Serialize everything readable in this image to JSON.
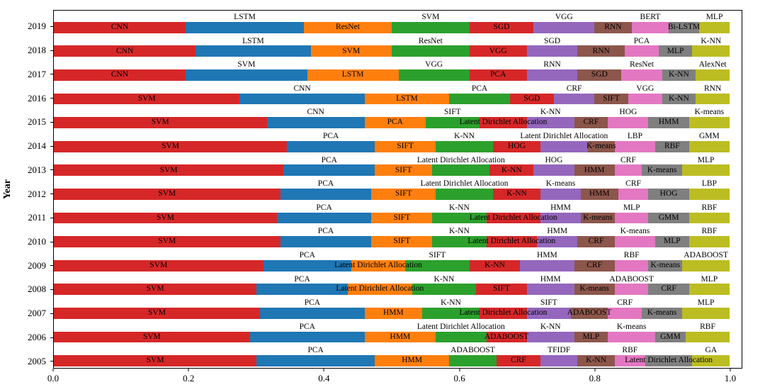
{
  "chart_data": {
    "type": "bar",
    "orientation": "horizontal",
    "stacked": true,
    "normalized": true,
    "title": "",
    "xlabel": "",
    "ylabel": "Year",
    "xlim": [
      0,
      1.02
    ],
    "xticks": [
      "0.0",
      "0.2",
      "0.4",
      "0.6",
      "0.8",
      "1.0"
    ],
    "grid": false,
    "legend": "none",
    "label_layout": "segments at even index are labeled inside the bar; segments at odd index are labeled above the bar",
    "colors": [
      "#d62728",
      "#1f77b4",
      "#ff7f0e",
      "#2ca02c",
      "#d62728",
      "#9467bd",
      "#8c564b",
      "#e377c2",
      "#7f7f7f",
      "#bcbd22"
    ],
    "rows": [
      {
        "year": "2019",
        "segments": [
          {
            "label": "CNN",
            "value": 0.195
          },
          {
            "label": "LSTM",
            "value": 0.175
          },
          {
            "label": "ResNet",
            "value": 0.13
          },
          {
            "label": "SVM",
            "value": 0.115
          },
          {
            "label": "SGD",
            "value": 0.095
          },
          {
            "label": "VGG",
            "value": 0.09
          },
          {
            "label": "RNN",
            "value": 0.055
          },
          {
            "label": "BERT",
            "value": 0.055
          },
          {
            "label": "Bi-LSTM",
            "value": 0.045
          },
          {
            "label": "MLP",
            "value": 0.045
          }
        ]
      },
      {
        "year": "2018",
        "segments": [
          {
            "label": "CNN",
            "value": 0.21
          },
          {
            "label": "LSTM",
            "value": 0.17
          },
          {
            "label": "SVM",
            "value": 0.12
          },
          {
            "label": "ResNet",
            "value": 0.115
          },
          {
            "label": "VGG",
            "value": 0.085
          },
          {
            "label": "SGD",
            "value": 0.075
          },
          {
            "label": "RNN",
            "value": 0.07
          },
          {
            "label": "PCA",
            "value": 0.05
          },
          {
            "label": "MLP",
            "value": 0.05
          },
          {
            "label": "K-NN",
            "value": 0.055
          }
        ]
      },
      {
        "year": "2017",
        "segments": [
          {
            "label": "CNN",
            "value": 0.195
          },
          {
            "label": "SVM",
            "value": 0.18
          },
          {
            "label": "LSTM",
            "value": 0.135
          },
          {
            "label": "VGG",
            "value": 0.105
          },
          {
            "label": "PCA",
            "value": 0.085
          },
          {
            "label": "RNN",
            "value": 0.075
          },
          {
            "label": "SGD",
            "value": 0.065
          },
          {
            "label": "ResNet",
            "value": 0.06
          },
          {
            "label": "K-NN",
            "value": 0.05
          },
          {
            "label": "AlexNet",
            "value": 0.05
          }
        ]
      },
      {
        "year": "2016",
        "segments": [
          {
            "label": "SVM",
            "value": 0.275
          },
          {
            "label": "CNN",
            "value": 0.185
          },
          {
            "label": "LSTM",
            "value": 0.125
          },
          {
            "label": "PCA",
            "value": 0.09
          },
          {
            "label": "SGD",
            "value": 0.065
          },
          {
            "label": "CRF",
            "value": 0.06
          },
          {
            "label": "SIFT",
            "value": 0.05
          },
          {
            "label": "VGG",
            "value": 0.05
          },
          {
            "label": "K-NN",
            "value": 0.05
          },
          {
            "label": "RNN",
            "value": 0.05
          }
        ]
      },
      {
        "year": "2015",
        "segments": [
          {
            "label": "SVM",
            "value": 0.315
          },
          {
            "label": "CNN",
            "value": 0.145
          },
          {
            "label": "PCA",
            "value": 0.09
          },
          {
            "label": "SIFT",
            "value": 0.08
          },
          {
            "label": "Latent Dirichlet Allocation",
            "value": 0.07
          },
          {
            "label": "K-NN",
            "value": 0.07
          },
          {
            "label": "CRF",
            "value": 0.05
          },
          {
            "label": "HOG",
            "value": 0.06
          },
          {
            "label": "HMM",
            "value": 0.06
          },
          {
            "label": "K-means",
            "value": 0.06
          }
        ]
      },
      {
        "year": "2014",
        "segments": [
          {
            "label": "SVM",
            "value": 0.345
          },
          {
            "label": "PCA",
            "value": 0.13
          },
          {
            "label": "SIFT",
            "value": 0.09
          },
          {
            "label": "K-NN",
            "value": 0.085
          },
          {
            "label": "HOG",
            "value": 0.07
          },
          {
            "label": "Latent Dirichlet Allocation",
            "value": 0.07
          },
          {
            "label": "K-means",
            "value": 0.04
          },
          {
            "label": "LBP",
            "value": 0.06
          },
          {
            "label": "RBF",
            "value": 0.05
          },
          {
            "label": "GMM",
            "value": 0.06
          }
        ]
      },
      {
        "year": "2013",
        "segments": [
          {
            "label": "SVM",
            "value": 0.34
          },
          {
            "label": "PCA",
            "value": 0.135
          },
          {
            "label": "SIFT",
            "value": 0.085
          },
          {
            "label": "Latent Dirichlet Allocation",
            "value": 0.085
          },
          {
            "label": "K-NN",
            "value": 0.065
          },
          {
            "label": "HOG",
            "value": 0.06
          },
          {
            "label": "HMM",
            "value": 0.06
          },
          {
            "label": "CRF",
            "value": 0.04
          },
          {
            "label": "K-means",
            "value": 0.06
          },
          {
            "label": "MLP",
            "value": 0.07
          }
        ]
      },
      {
        "year": "2012",
        "segments": [
          {
            "label": "SVM",
            "value": 0.335
          },
          {
            "label": "PCA",
            "value": 0.135
          },
          {
            "label": "SIFT",
            "value": 0.095
          },
          {
            "label": "Latent Dirichlet Allocation",
            "value": 0.085
          },
          {
            "label": "K-NN",
            "value": 0.07
          },
          {
            "label": "K-means",
            "value": 0.06
          },
          {
            "label": "HMM",
            "value": 0.055
          },
          {
            "label": "CRF",
            "value": 0.045
          },
          {
            "label": "HOG",
            "value": 0.06
          },
          {
            "label": "LBP",
            "value": 0.06
          }
        ]
      },
      {
        "year": "2011",
        "segments": [
          {
            "label": "SVM",
            "value": 0.33
          },
          {
            "label": "PCA",
            "value": 0.14
          },
          {
            "label": "SIFT",
            "value": 0.09
          },
          {
            "label": "K-NN",
            "value": 0.08
          },
          {
            "label": "Latent Dirichlet Allocation",
            "value": 0.08
          },
          {
            "label": "HMM",
            "value": 0.06
          },
          {
            "label": "K-means",
            "value": 0.05
          },
          {
            "label": "MLP",
            "value": 0.05
          },
          {
            "label": "GMM",
            "value": 0.06
          },
          {
            "label": "RBF",
            "value": 0.06
          }
        ]
      },
      {
        "year": "2010",
        "segments": [
          {
            "label": "SVM",
            "value": 0.335
          },
          {
            "label": "PCA",
            "value": 0.135
          },
          {
            "label": "SIFT",
            "value": 0.09
          },
          {
            "label": "K-NN",
            "value": 0.08
          },
          {
            "label": "Latent Dirichlet Allocation",
            "value": 0.075
          },
          {
            "label": "HMM",
            "value": 0.06
          },
          {
            "label": "CRF",
            "value": 0.055
          },
          {
            "label": "K-means",
            "value": 0.06
          },
          {
            "label": "MLP",
            "value": 0.05
          },
          {
            "label": "RBF",
            "value": 0.06
          }
        ]
      },
      {
        "year": "2009",
        "segments": [
          {
            "label": "SVM",
            "value": 0.31
          },
          {
            "label": "PCA",
            "value": 0.13
          },
          {
            "label": "Latent Dirichlet Allocation",
            "value": 0.08
          },
          {
            "label": "SIFT",
            "value": 0.095
          },
          {
            "label": "K-NN",
            "value": 0.075
          },
          {
            "label": "HMM",
            "value": 0.08
          },
          {
            "label": "CRF",
            "value": 0.06
          },
          {
            "label": "RBF",
            "value": 0.05
          },
          {
            "label": "K-means",
            "value": 0.05
          },
          {
            "label": "ADABOOST",
            "value": 0.07
          }
        ]
      },
      {
        "year": "2008",
        "segments": [
          {
            "label": "SVM",
            "value": 0.3
          },
          {
            "label": "PCA",
            "value": 0.135
          },
          {
            "label": "Latent Dirichlet Allocation",
            "value": 0.095
          },
          {
            "label": "K-NN",
            "value": 0.095
          },
          {
            "label": "SIFT",
            "value": 0.075
          },
          {
            "label": "HMM",
            "value": 0.07
          },
          {
            "label": "K-means",
            "value": 0.06
          },
          {
            "label": "ADABOOST",
            "value": 0.05
          },
          {
            "label": "CRF",
            "value": 0.06
          },
          {
            "label": "MLP",
            "value": 0.06
          }
        ]
      },
      {
        "year": "2007",
        "segments": [
          {
            "label": "SVM",
            "value": 0.305
          },
          {
            "label": "PCA",
            "value": 0.155
          },
          {
            "label": "HMM",
            "value": 0.085
          },
          {
            "label": "K-NN",
            "value": 0.085
          },
          {
            "label": "Latent Dirichlet Allocation",
            "value": 0.07
          },
          {
            "label": "SIFT",
            "value": 0.065
          },
          {
            "label": "ADABOOST",
            "value": 0.055
          },
          {
            "label": "CRF",
            "value": 0.05
          },
          {
            "label": "K-means",
            "value": 0.06
          },
          {
            "label": "MLP",
            "value": 0.07
          }
        ]
      },
      {
        "year": "2006",
        "segments": [
          {
            "label": "SVM",
            "value": 0.29
          },
          {
            "label": "PCA",
            "value": 0.17
          },
          {
            "label": "HMM",
            "value": 0.105
          },
          {
            "label": "Latent Dirichlet Allocation",
            "value": 0.075
          },
          {
            "label": "ADABOOST",
            "value": 0.06
          },
          {
            "label": "K-NN",
            "value": 0.07
          },
          {
            "label": "MLP",
            "value": 0.05
          },
          {
            "label": "K-means",
            "value": 0.07
          },
          {
            "label": "GMM",
            "value": 0.045
          },
          {
            "label": "RBF",
            "value": 0.065
          }
        ]
      },
      {
        "year": "2005",
        "segments": [
          {
            "label": "SVM",
            "value": 0.3
          },
          {
            "label": "PCA",
            "value": 0.175
          },
          {
            "label": "HMM",
            "value": 0.11
          },
          {
            "label": "ADABOOST",
            "value": 0.07
          },
          {
            "label": "CRF",
            "value": 0.065
          },
          {
            "label": "TFIDF",
            "value": 0.055
          },
          {
            "label": "K-NN",
            "value": 0.055
          },
          {
            "label": "RBF",
            "value": 0.045
          },
          {
            "label": "Latent Dirichlet Allocation",
            "value": 0.07
          },
          {
            "label": "GA",
            "value": 0.055
          }
        ]
      }
    ]
  }
}
